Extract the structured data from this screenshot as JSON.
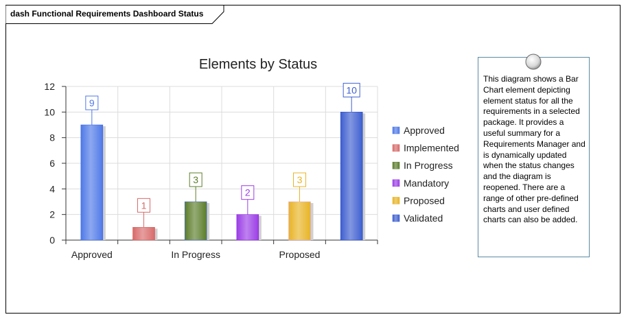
{
  "frame": {
    "title": "dash Functional Requirements Dashboard Status"
  },
  "note": {
    "text": "This diagram shows a Bar Chart element depicting element status for all the requirements in a selected package. It provides a useful summary for a Requirements Manager and is dynamically updated when the status changes and the diagram is reopened. There are a range of other pre-defined charts and user defined charts can also be added."
  },
  "chart_data": {
    "type": "bar",
    "title": "Elements by Status",
    "categories": [
      "Approved",
      "Implemented",
      "In Progress",
      "Mandatory",
      "Proposed",
      "Validated"
    ],
    "x_tick_labels": [
      "Approved",
      "",
      "In Progress",
      "",
      "Proposed",
      ""
    ],
    "values": [
      9,
      1,
      3,
      2,
      3,
      10
    ],
    "colors": [
      "#4f79e8",
      "#d96a6a",
      "#5c7d2a",
      "#9b3ee6",
      "#e8b425",
      "#3e5fd0"
    ],
    "ylim": [
      0,
      12
    ],
    "yticks": [
      0,
      2,
      4,
      6,
      8,
      10,
      12
    ],
    "grid": true,
    "legend_position": "right",
    "legend": [
      "Approved",
      "Implemented",
      "In Progress",
      "Mandatory",
      "Proposed",
      "Validated"
    ],
    "xlabel": "",
    "ylabel": ""
  }
}
